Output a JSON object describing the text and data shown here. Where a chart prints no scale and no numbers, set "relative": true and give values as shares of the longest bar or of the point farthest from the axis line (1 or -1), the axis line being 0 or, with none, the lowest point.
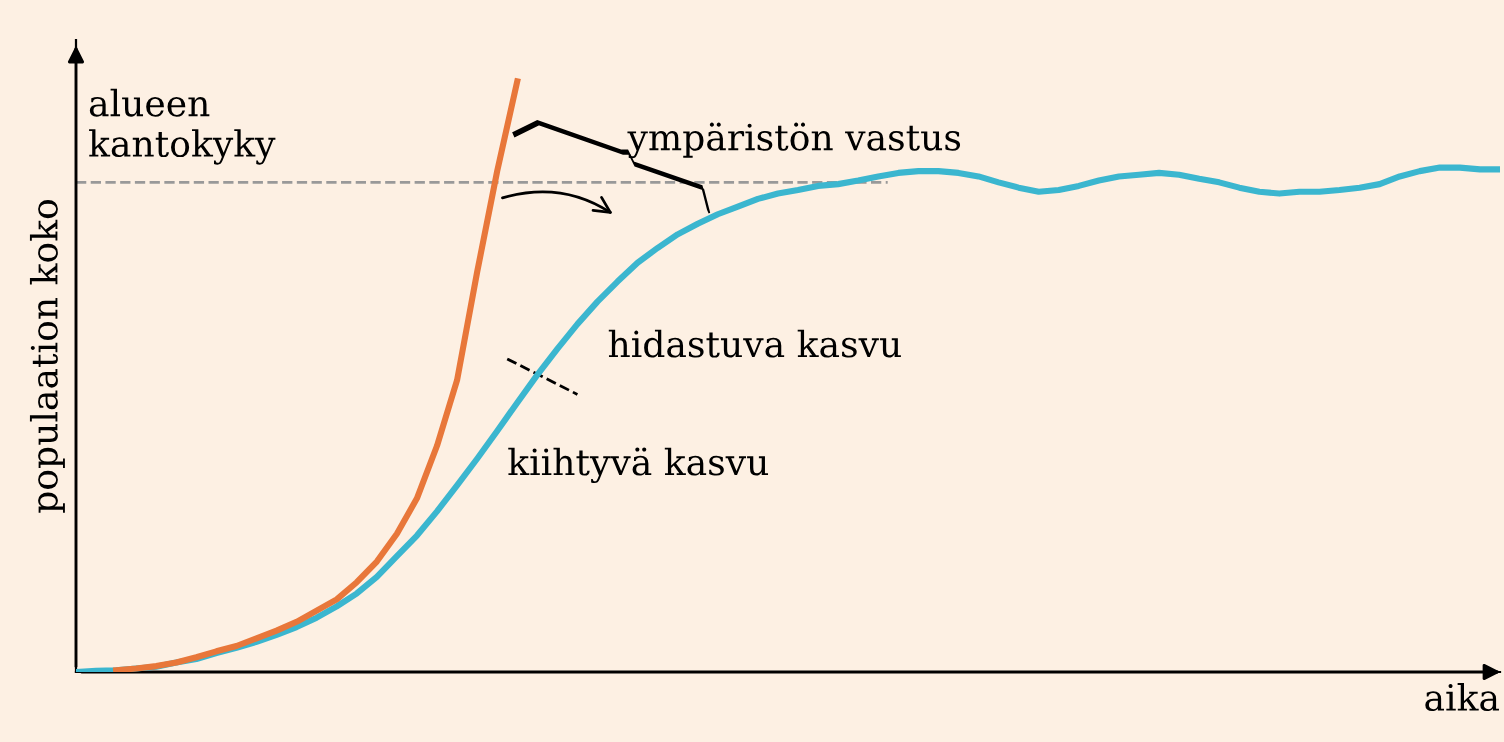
{
  "chart_data": {
    "type": "line",
    "relative": true,
    "xlabel": "aika",
    "ylabel": "populaation koko",
    "categories": [
      null,
      null,
      null,
      null,
      null,
      null,
      null,
      null,
      null,
      null,
      null,
      null,
      null,
      null,
      null,
      null,
      null,
      null,
      null,
      null,
      null,
      null,
      null,
      null,
      null,
      null,
      null,
      null,
      null,
      null,
      null,
      null,
      null,
      null,
      null,
      null,
      null,
      null,
      null,
      null,
      null,
      null,
      null,
      null,
      null,
      null,
      null,
      null,
      null,
      null,
      null,
      null,
      null,
      null,
      null,
      null,
      null,
      null,
      null,
      null,
      null,
      null,
      null,
      null,
      null,
      null,
      null,
      null,
      null,
      null,
      null,
      null
    ],
    "series": [
      {
        "color": "#e8773a",
        "values": [
          null,
          null,
          0.003,
          0.006,
          0.01,
          0.016,
          0.025,
          0.035,
          0.044,
          0.057,
          0.07,
          0.085,
          0.104,
          0.123,
          0.152,
          0.187,
          0.234,
          0.294,
          0.383,
          0.494,
          0.677,
          0.848,
          1.0,
          null,
          null,
          null,
          null,
          null,
          null,
          null,
          null,
          null,
          null,
          null,
          null,
          null,
          null,
          null,
          null,
          null,
          null,
          null,
          null,
          null,
          null,
          null,
          null,
          null,
          null,
          null,
          null,
          null,
          null,
          null,
          null,
          null,
          null,
          null,
          null,
          null,
          null,
          null,
          null,
          null,
          null,
          null,
          null,
          null,
          null,
          null,
          null,
          null
        ]
      },
      {
        "color": "#3bb6cf",
        "values": [
          0,
          0.002,
          0.003,
          0.006,
          0.009,
          0.016,
          0.022,
          0.032,
          0.041,
          0.051,
          0.063,
          0.076,
          0.092,
          0.111,
          0.133,
          0.161,
          0.196,
          0.231,
          0.272,
          0.316,
          0.361,
          0.408,
          0.456,
          0.503,
          0.547,
          0.589,
          0.627,
          0.661,
          0.693,
          0.718,
          0.741,
          0.759,
          0.775,
          0.788,
          0.801,
          0.81,
          0.816,
          0.823,
          0.826,
          0.832,
          0.839,
          0.845,
          0.848,
          0.848,
          0.845,
          0.839,
          0.829,
          0.82,
          0.813,
          0.816,
          0.823,
          0.832,
          0.839,
          0.842,
          0.845,
          0.842,
          0.835,
          0.829,
          0.82,
          0.813,
          0.81,
          0.813,
          0.813,
          0.816,
          0.82,
          0.826,
          0.839,
          0.848,
          0.854,
          0.854,
          0.851,
          0.851
        ]
      }
    ],
    "ref_lines": [
      {
        "axis": "y",
        "value": 0.829,
        "label": "alueen\nkantokyky",
        "color": "#999999",
        "line_style": "dashed"
      }
    ],
    "annotations": [
      "ympäristön vastus",
      "hidastuva kasvu",
      "kiihtyvä kasvu"
    ],
    "line_style": "solid",
    "marker": "none"
  }
}
